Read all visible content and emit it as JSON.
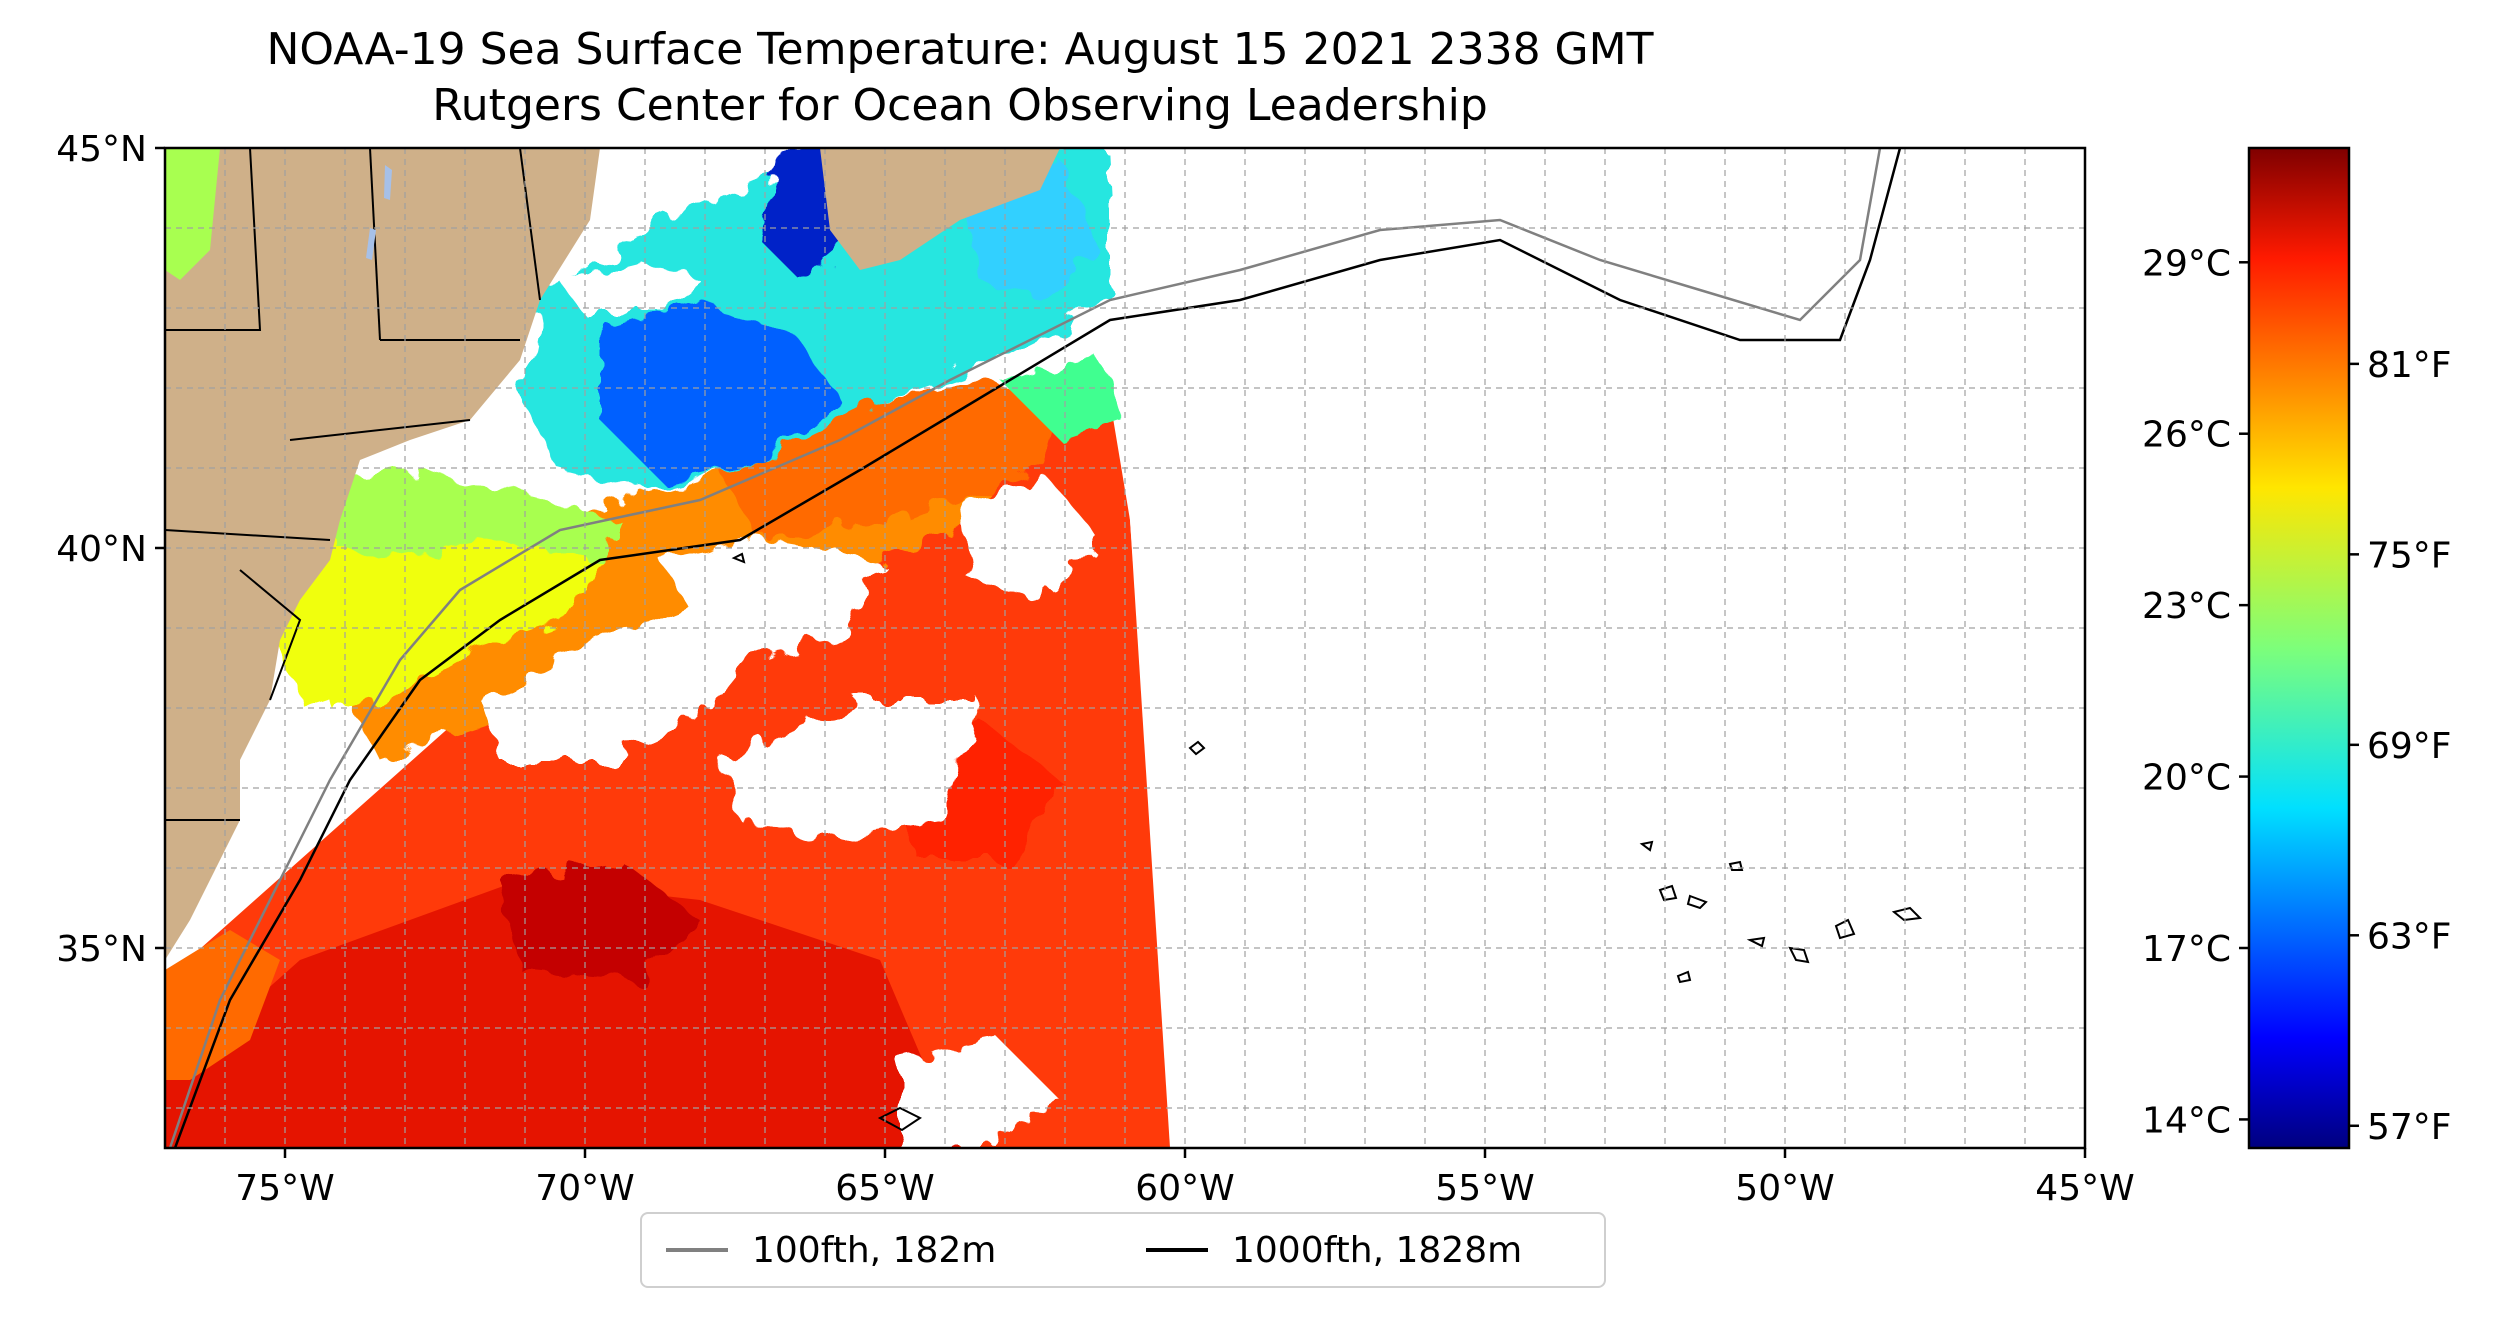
{
  "title": {
    "line1": "NOAA-19 Sea Surface Temperature: August 15 2021 2338 GMT",
    "line2": "Rutgers Center for Ocean Observing Leadership"
  },
  "map": {
    "lon_range": [
      -77,
      -45
    ],
    "lat_range": [
      32.5,
      45
    ],
    "lat_ticks": [
      {
        "value": 45,
        "label": "45°N"
      },
      {
        "value": 40,
        "label": "40°N"
      },
      {
        "value": 35,
        "label": "35°N"
      }
    ],
    "lon_ticks": [
      {
        "value": -75,
        "label": "75°W"
      },
      {
        "value": -70,
        "label": "70°W"
      },
      {
        "value": -65,
        "label": "65°W"
      },
      {
        "value": -60,
        "label": "60°W"
      },
      {
        "value": -55,
        "label": "55°W"
      },
      {
        "value": -50,
        "label": "50°W"
      },
      {
        "value": -45,
        "label": "45°W"
      }
    ],
    "gridlines": "dashed",
    "colors": {
      "land": "#cfb089",
      "lakes": "#a6c0e8",
      "cloud": "#ffffff",
      "isobath_100": "#808080",
      "isobath_1000": "#000000"
    }
  },
  "colorbar": {
    "colormap": "jet",
    "celsius_ticks": [
      {
        "value": 29,
        "label": "29°C"
      },
      {
        "value": 26,
        "label": "26°C"
      },
      {
        "value": 23,
        "label": "23°C"
      },
      {
        "value": 20,
        "label": "20°C"
      },
      {
        "value": 17,
        "label": "17°C"
      },
      {
        "value": 14,
        "label": "14°C"
      }
    ],
    "fahrenheit_ticks": [
      {
        "value": 81,
        "label": "81°F"
      },
      {
        "value": 75,
        "label": "75°F"
      },
      {
        "value": 69,
        "label": "69°F"
      },
      {
        "value": 63,
        "label": "63°F"
      },
      {
        "value": 57,
        "label": "57°F"
      }
    ],
    "range_c": [
      13.5,
      31
    ]
  },
  "legend": {
    "items": [
      {
        "label": "100fth, 182m",
        "color": "#808080"
      },
      {
        "label": "1000fth, 1828m",
        "color": "#000000"
      }
    ]
  }
}
